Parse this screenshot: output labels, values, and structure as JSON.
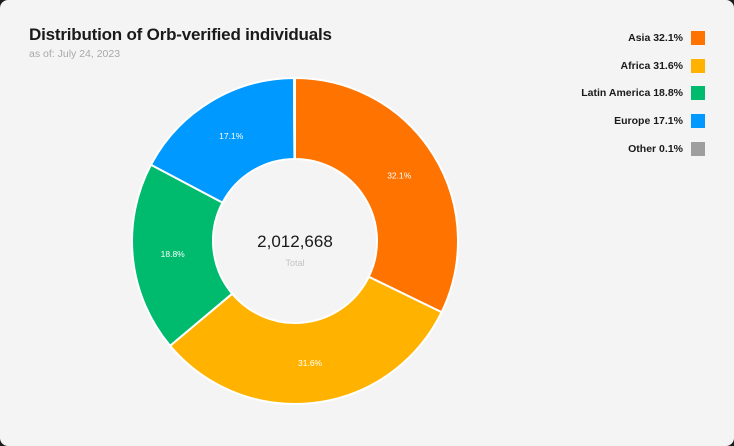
{
  "chart_data": {
    "type": "pie",
    "donut": true,
    "title": "Distribution of Orb-verified individuals",
    "subtitle": "as of: July 24, 2023",
    "center_value": "2,012,668",
    "center_label": "Total",
    "legend_position": "top-right",
    "slices": [
      {
        "name": "Asia",
        "value": 32.1,
        "label": "32.1%",
        "legend": "Asia 32.1%",
        "color": "#FF7300"
      },
      {
        "name": "Africa",
        "value": 31.6,
        "label": "31.6%",
        "legend": "Africa 31.6%",
        "color": "#FFB300"
      },
      {
        "name": "Latin America",
        "value": 18.8,
        "label": "18.8%",
        "legend": "Latin America 18.8%",
        "color": "#00BA6E"
      },
      {
        "name": "Europe",
        "value": 17.1,
        "label": "17.1%",
        "legend": "Europe 17.1%",
        "color": "#0099FF"
      },
      {
        "name": "Other",
        "value": 0.1,
        "label": "",
        "legend": "Other 0.1%",
        "color": "#9E9E9E"
      }
    ]
  }
}
